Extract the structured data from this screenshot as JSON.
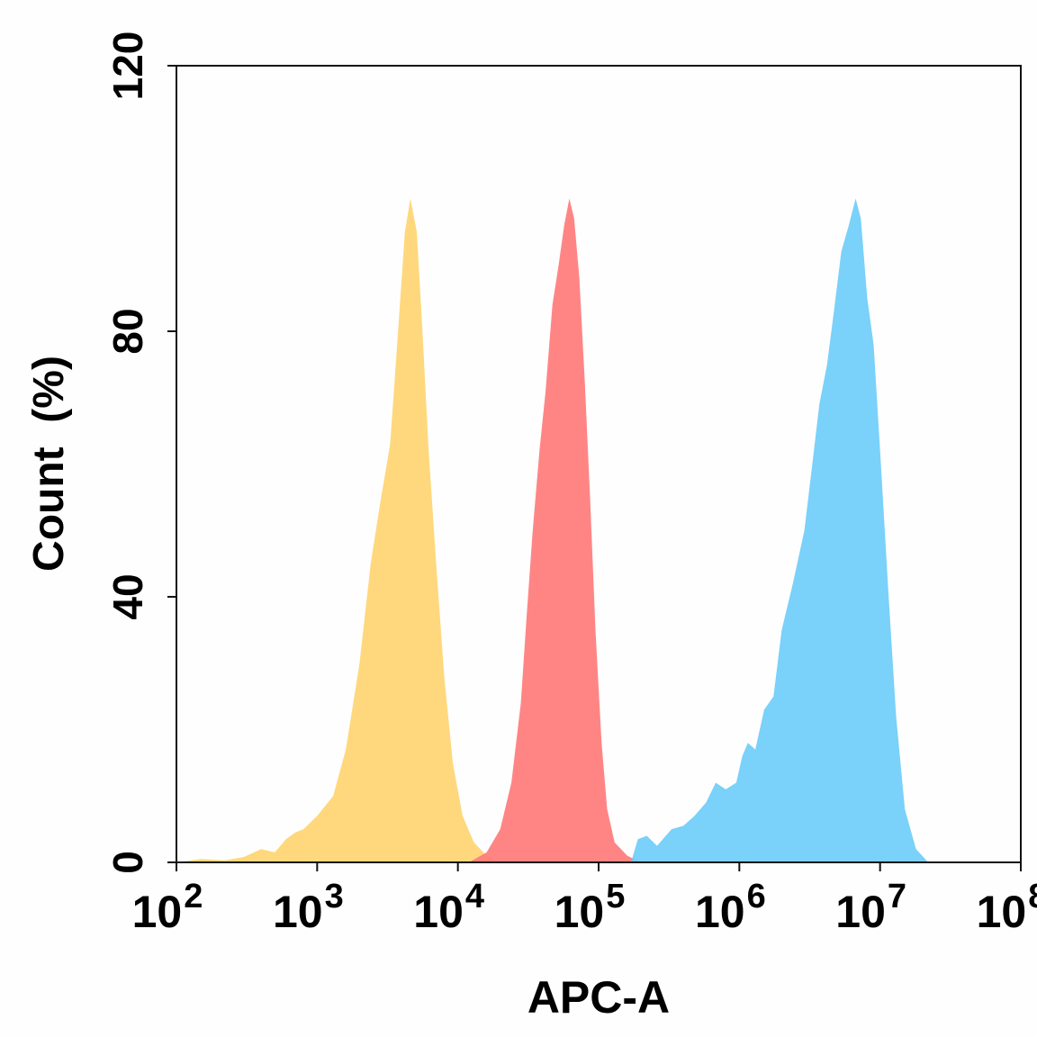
{
  "chart_data": {
    "type": "area",
    "xlabel": "APC-A",
    "ylabel": "Count  (%)",
    "x_scale": "log10",
    "xlim": [
      100,
      100000000
    ],
    "ylim": [
      0,
      120
    ],
    "grid": false,
    "legend": "none",
    "x_ticks": [
      {
        "value": 100,
        "base": "10",
        "exp": "2"
      },
      {
        "value": 1000,
        "base": "10",
        "exp": "3"
      },
      {
        "value": 10000,
        "base": "10",
        "exp": "4"
      },
      {
        "value": 100000,
        "base": "10",
        "exp": "5"
      },
      {
        "value": 1000000,
        "base": "10",
        "exp": "6"
      },
      {
        "value": 10000000,
        "base": "10",
        "exp": "7"
      },
      {
        "value": 100000000,
        "base": "10",
        "exp": "8"
      }
    ],
    "y_ticks": [
      {
        "value": 0,
        "label": "0"
      },
      {
        "value": 40,
        "label": "40"
      },
      {
        "value": 80,
        "label": "80"
      },
      {
        "value": 120,
        "label": "120"
      }
    ],
    "series": [
      {
        "color": "#ffd36b",
        "opacity": 0.88,
        "points": [
          [
            100,
            0
          ],
          [
            150,
            0.5
          ],
          [
            220,
            0.3
          ],
          [
            300,
            0.8
          ],
          [
            400,
            2
          ],
          [
            500,
            1.5
          ],
          [
            600,
            3.5
          ],
          [
            700,
            4.5
          ],
          [
            800,
            5
          ],
          [
            1000,
            7
          ],
          [
            1300,
            10
          ],
          [
            1600,
            17
          ],
          [
            2000,
            30
          ],
          [
            2400,
            45
          ],
          [
            2800,
            54
          ],
          [
            3300,
            63
          ],
          [
            3700,
            78
          ],
          [
            4200,
            95
          ],
          [
            4600,
            100
          ],
          [
            5100,
            95
          ],
          [
            5600,
            80
          ],
          [
            6200,
            62
          ],
          [
            7000,
            45
          ],
          [
            8000,
            28
          ],
          [
            9200,
            15
          ],
          [
            10800,
            7
          ],
          [
            13000,
            3
          ],
          [
            16000,
            1
          ],
          [
            20000,
            0
          ]
        ]
      },
      {
        "color": "#ff7b7b",
        "opacity": 0.92,
        "points": [
          [
            12000,
            0
          ],
          [
            16000,
            1.5
          ],
          [
            20000,
            5
          ],
          [
            24000,
            12
          ],
          [
            28000,
            24
          ],
          [
            31000,
            38
          ],
          [
            34000,
            50
          ],
          [
            38000,
            62
          ],
          [
            42000,
            71
          ],
          [
            47000,
            84
          ],
          [
            52000,
            90
          ],
          [
            57000,
            96
          ],
          [
            62000,
            100
          ],
          [
            67000,
            97
          ],
          [
            73000,
            88
          ],
          [
            80000,
            72
          ],
          [
            87000,
            55
          ],
          [
            95000,
            35
          ],
          [
            105000,
            18
          ],
          [
            115000,
            8
          ],
          [
            130000,
            3
          ],
          [
            160000,
            1
          ],
          [
            200000,
            0
          ]
        ]
      },
      {
        "color": "#6cccf8",
        "opacity": 0.9,
        "points": [
          [
            170000,
            0
          ],
          [
            190000,
            3.5
          ],
          [
            220000,
            4
          ],
          [
            260000,
            2.5
          ],
          [
            330000,
            5
          ],
          [
            400000,
            5.5
          ],
          [
            480000,
            7
          ],
          [
            580000,
            9
          ],
          [
            680000,
            12
          ],
          [
            800000,
            11
          ],
          [
            950000,
            12
          ],
          [
            1050000,
            16
          ],
          [
            1150000,
            18
          ],
          [
            1300000,
            17
          ],
          [
            1500000,
            23
          ],
          [
            1750000,
            25
          ],
          [
            2000000,
            35
          ],
          [
            2400000,
            42
          ],
          [
            2900000,
            50
          ],
          [
            3300000,
            60
          ],
          [
            3700000,
            69
          ],
          [
            4200000,
            75
          ],
          [
            4700000,
            83
          ],
          [
            5300000,
            92
          ],
          [
            6000000,
            96
          ],
          [
            6700000,
            100
          ],
          [
            7300000,
            97
          ],
          [
            8100000,
            85
          ],
          [
            9000000,
            78
          ],
          [
            10000000,
            62
          ],
          [
            11500000,
            40
          ],
          [
            13000000,
            22
          ],
          [
            15000000,
            8
          ],
          [
            18000000,
            2
          ],
          [
            22000000,
            0
          ]
        ]
      }
    ]
  }
}
